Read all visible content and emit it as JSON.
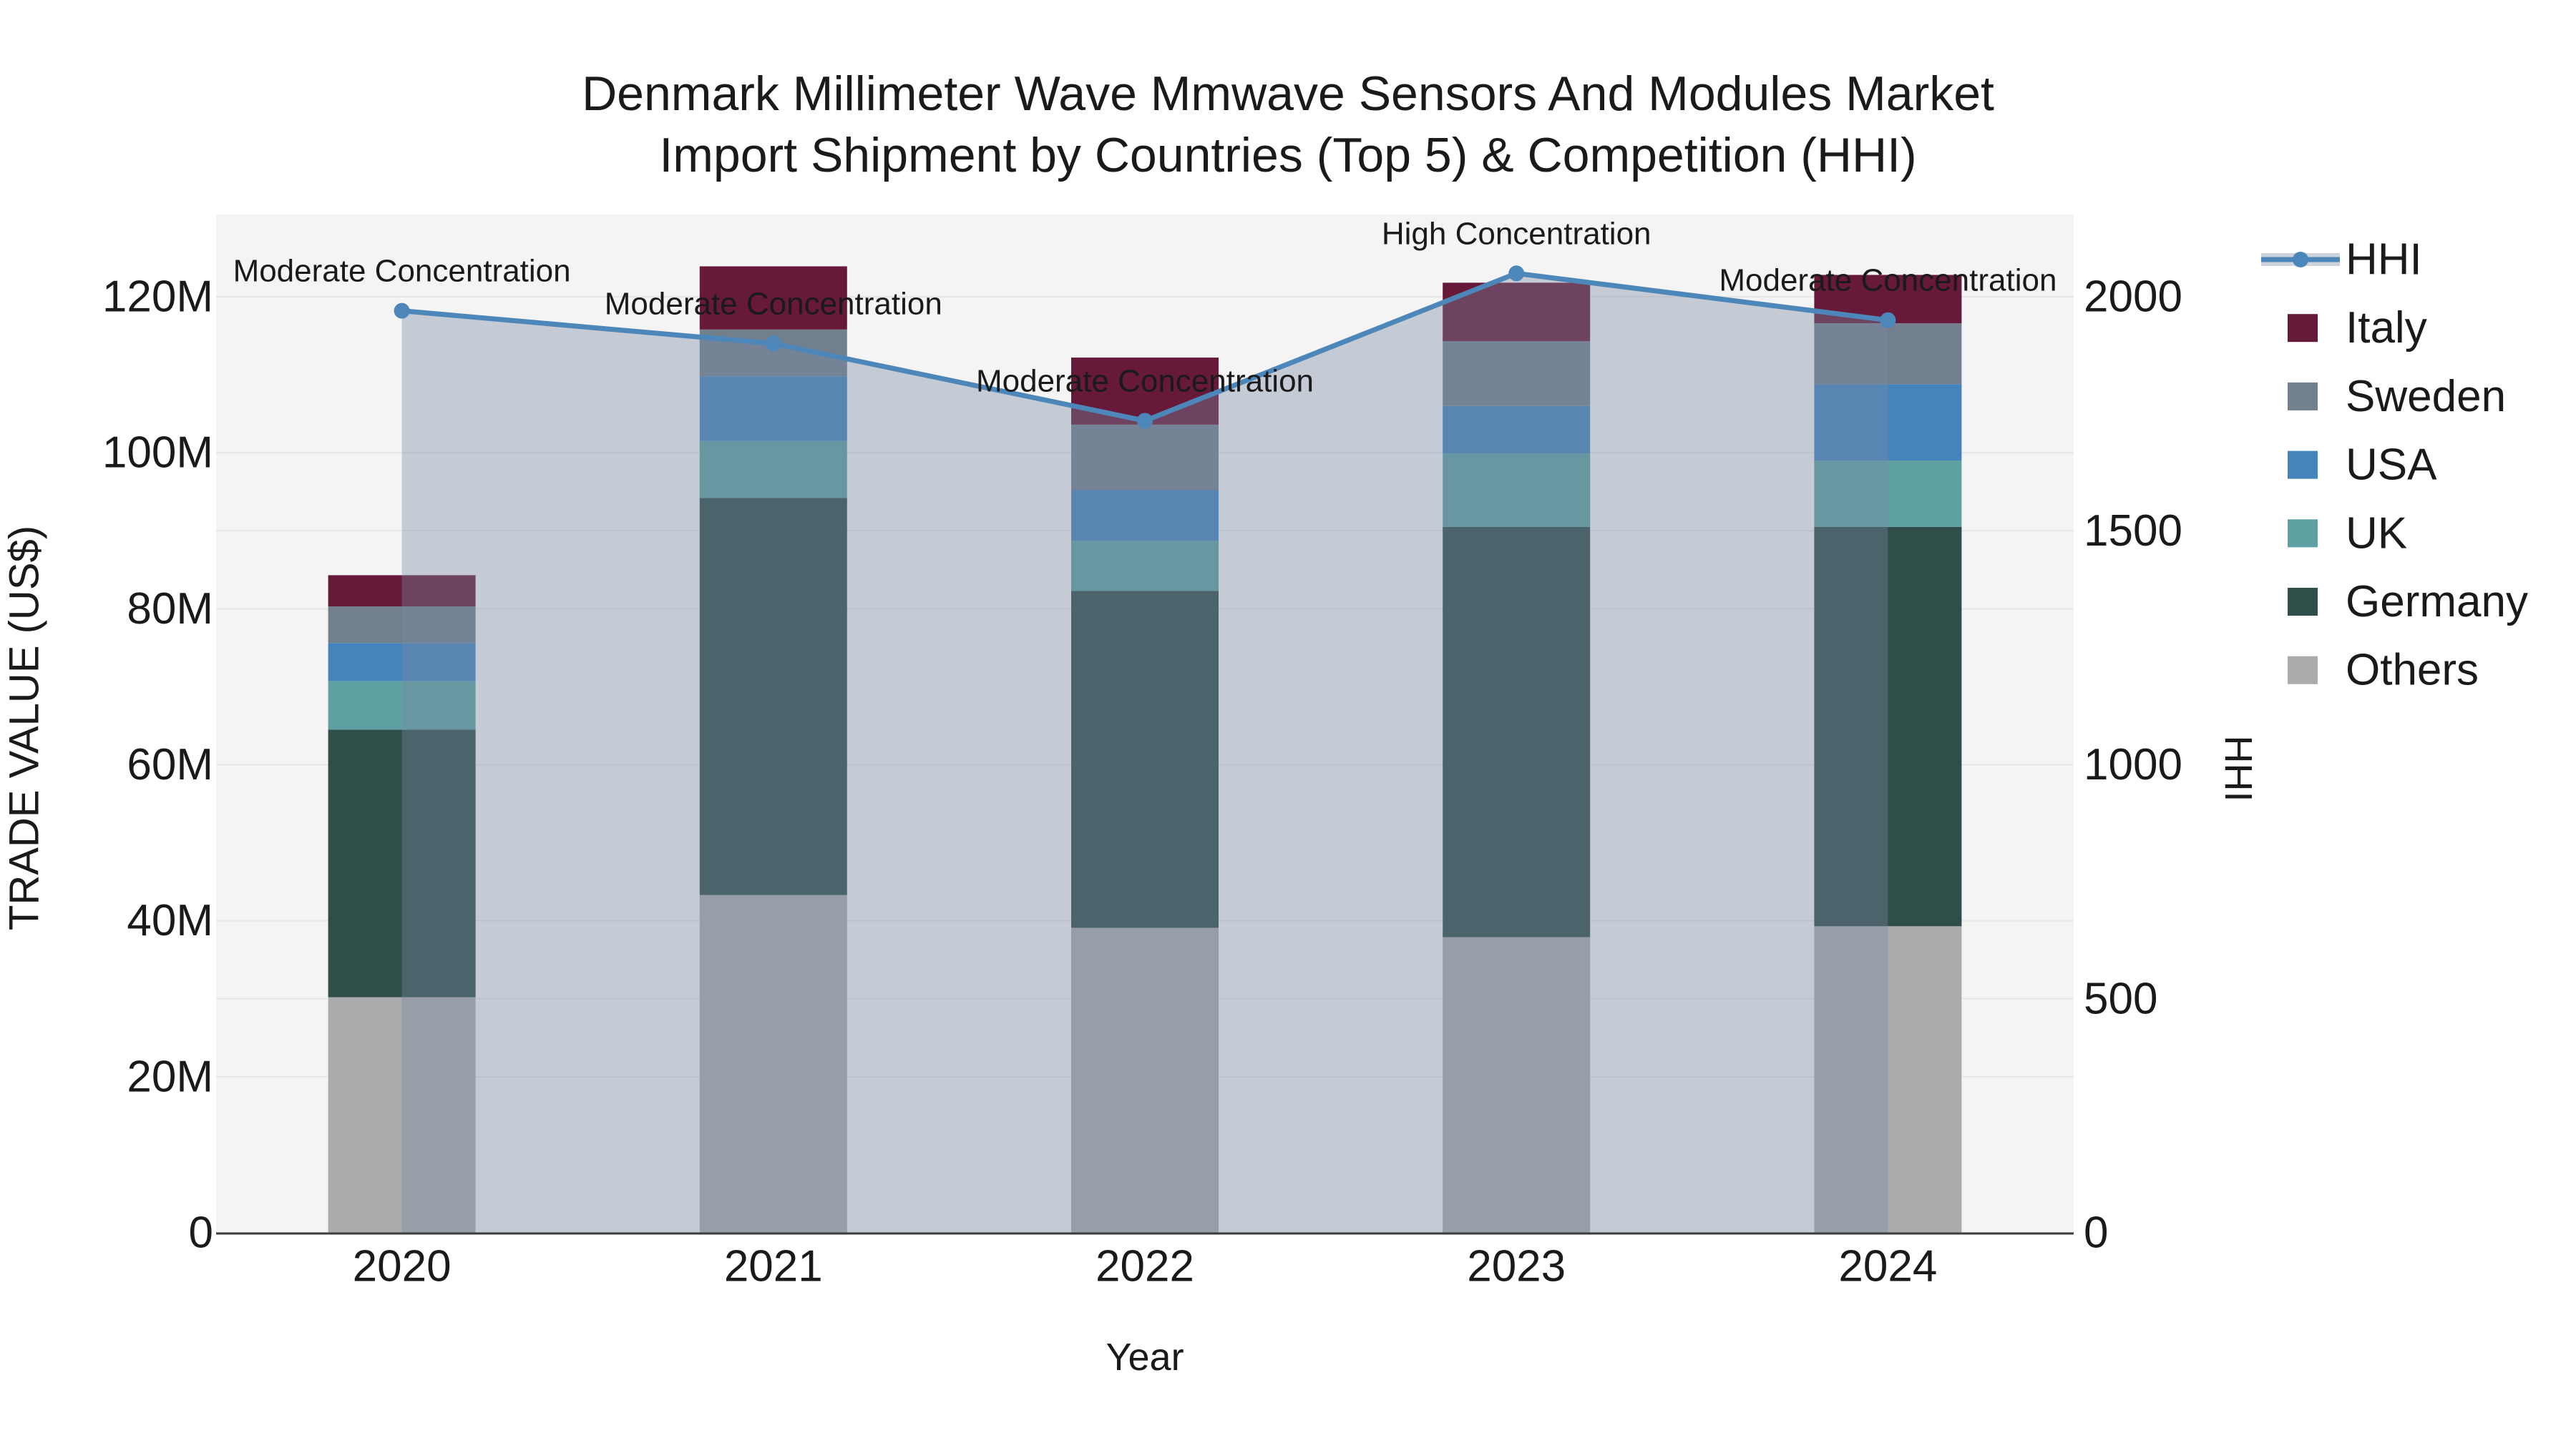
{
  "title": {
    "line1": "Denmark Millimeter Wave Mmwave Sensors And Modules Market",
    "line2": "Import Shipment by Countries (Top 5) & Competition (HHI)"
  },
  "chart_data": {
    "type": "combo: stacked-bar (left axis) + line-with-area (right axis)",
    "categories": [
      "2020",
      "2021",
      "2022",
      "2023",
      "2024"
    ],
    "xlabel": "Year",
    "ylabel_left": "TRADE VALUE (US$)",
    "ylabel_right": "HHI",
    "y_left_axis": {
      "tick_values": [
        0,
        20,
        40,
        60,
        80,
        100,
        120
      ],
      "tick_labels": [
        "0",
        "20M",
        "40M",
        "60M",
        "80M",
        "100M",
        "120M"
      ],
      "unit": "M US$",
      "max": 130.5,
      "grid": true
    },
    "y_right_axis": {
      "tick_values": [
        0,
        500,
        1000,
        1500,
        2000
      ],
      "tick_labels": [
        "0",
        "500",
        "1000",
        "1500",
        "2000"
      ],
      "max": 2176,
      "grid": true
    },
    "series": [
      {
        "name": "Others",
        "color": "#aaabad",
        "values": [
          30.2,
          43.3,
          39.1,
          37.9,
          39.3
        ]
      },
      {
        "name": "Germany",
        "color": "#2f4d49",
        "values": [
          34.3,
          50.9,
          43.2,
          52.6,
          51.2
        ]
      },
      {
        "name": "UK",
        "color": "#5fa0a2",
        "values": [
          6.2,
          7.3,
          6.4,
          9.4,
          8.5
        ]
      },
      {
        "name": "USA",
        "color": "#4583bd",
        "values": [
          4.9,
          8.3,
          6.5,
          6.1,
          9.8
        ]
      },
      {
        "name": "Sweden",
        "color": "#72808e",
        "values": [
          4.7,
          6.0,
          8.4,
          8.3,
          7.8
        ]
      },
      {
        "name": "Italy",
        "color": "#661939",
        "values": [
          4.0,
          8.1,
          8.6,
          7.5,
          6.2
        ]
      }
    ],
    "stacked_totals": [
      84.3,
      123.9,
      112.2,
      121.8,
      122.8
    ],
    "hhi": {
      "name": "HHI",
      "color": "#4d87ba",
      "area_fill": "rgba(122,136,160,0.38)",
      "values": [
        1970,
        1900,
        1735,
        2050,
        1950
      ]
    },
    "annotations": [
      {
        "category": "2020",
        "text": "Moderate Concentration"
      },
      {
        "category": "2021",
        "text": "Moderate Concentration"
      },
      {
        "category": "2022",
        "text": "Moderate Concentration"
      },
      {
        "category": "2023",
        "text": "High Concentration"
      },
      {
        "category": "2024",
        "text": "Moderate Concentration"
      }
    ],
    "legend": {
      "position": "right",
      "items": [
        "HHI",
        "Italy",
        "Sweden",
        "USA",
        "UK",
        "Germany",
        "Others"
      ]
    },
    "plot_bg_color": "#f4f4f4",
    "grid_color": "#e7e7e7",
    "axis_line_color": "#3c3c3c"
  }
}
